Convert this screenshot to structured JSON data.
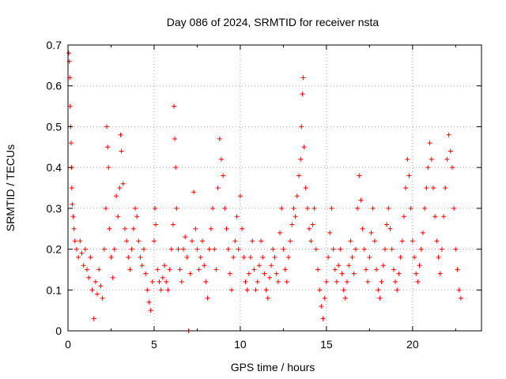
{
  "chart_data": {
    "type": "scatter",
    "title": "Day 086 of 2024, SRMTID for receiver nsta",
    "xlabel": "GPS time / hours",
    "ylabel": "SRMTID / TECUs",
    "xlim": [
      0,
      24
    ],
    "ylim": [
      0,
      0.7
    ],
    "xticks": [
      0,
      5,
      10,
      15,
      20
    ],
    "xtick_labels": [
      "0",
      "5",
      "10",
      "15",
      "20"
    ],
    "yticks": [
      0,
      0.1,
      0.2,
      0.3,
      0.4,
      0.5,
      0.6,
      0.7
    ],
    "ytick_labels": [
      "0",
      "0.1",
      "0.2",
      "0.3",
      "0.4",
      "0.5",
      "0.6",
      "0.7"
    ],
    "grid": true,
    "marker": "+",
    "color": "#ff0000",
    "x_extent_hours": [
      0,
      22.8
    ],
    "series": [
      {
        "name": "SRMTID",
        "points": [
          [
            0.05,
            0.68
          ],
          [
            0.08,
            0.66
          ],
          [
            0.1,
            0.62
          ],
          [
            0.12,
            0.55
          ],
          [
            0.15,
            0.5
          ],
          [
            0.18,
            0.46
          ],
          [
            0.2,
            0.4
          ],
          [
            0.22,
            0.35
          ],
          [
            0.25,
            0.31
          ],
          [
            0.3,
            0.28
          ],
          [
            0.35,
            0.25
          ],
          [
            0.4,
            0.22
          ],
          [
            0.5,
            0.2
          ],
          [
            0.6,
            0.18
          ],
          [
            0.7,
            0.22
          ],
          [
            0.8,
            0.19
          ],
          [
            0.9,
            0.16
          ],
          [
            1.0,
            0.2
          ],
          [
            1.1,
            0.15
          ],
          [
            1.2,
            0.13
          ],
          [
            1.3,
            0.18
          ],
          [
            1.4,
            0.1
          ],
          [
            1.5,
            0.03
          ],
          [
            1.6,
            0.12
          ],
          [
            1.7,
            0.09
          ],
          [
            1.8,
            0.15
          ],
          [
            1.9,
            0.11
          ],
          [
            2.0,
            0.08
          ],
          [
            2.1,
            0.2
          ],
          [
            2.2,
            0.3
          ],
          [
            2.25,
            0.5
          ],
          [
            2.3,
            0.45
          ],
          [
            2.35,
            0.4
          ],
          [
            2.4,
            0.25
          ],
          [
            2.5,
            0.18
          ],
          [
            2.6,
            0.13
          ],
          [
            2.7,
            0.2
          ],
          [
            2.8,
            0.33
          ],
          [
            2.9,
            0.28
          ],
          [
            3.0,
            0.35
          ],
          [
            3.05,
            0.48
          ],
          [
            3.1,
            0.44
          ],
          [
            3.2,
            0.36
          ],
          [
            3.3,
            0.25
          ],
          [
            3.4,
            0.22
          ],
          [
            3.5,
            0.18
          ],
          [
            3.6,
            0.15
          ],
          [
            3.7,
            0.2
          ],
          [
            3.8,
            0.25
          ],
          [
            3.9,
            0.3
          ],
          [
            4.0,
            0.28
          ],
          [
            4.1,
            0.22
          ],
          [
            4.2,
            0.18
          ],
          [
            4.3,
            0.16
          ],
          [
            4.4,
            0.2
          ],
          [
            4.5,
            0.14
          ],
          [
            4.6,
            0.1
          ],
          [
            4.7,
            0.07
          ],
          [
            4.8,
            0.05
          ],
          [
            4.9,
            0.12
          ],
          [
            5.0,
            0.22
          ],
          [
            5.05,
            0.3
          ],
          [
            5.1,
            0.26
          ],
          [
            5.2,
            0.15
          ],
          [
            5.3,
            0.12
          ],
          [
            5.4,
            0.1
          ],
          [
            5.5,
            0.13
          ],
          [
            5.6,
            0.16
          ],
          [
            5.7,
            0.12
          ],
          [
            5.8,
            0.1
          ],
          [
            5.9,
            0.15
          ],
          [
            6.0,
            0.2
          ],
          [
            6.1,
            0.26
          ],
          [
            6.15,
            0.55
          ],
          [
            6.2,
            0.47
          ],
          [
            6.25,
            0.4
          ],
          [
            6.3,
            0.3
          ],
          [
            6.4,
            0.2
          ],
          [
            6.5,
            0.15
          ],
          [
            6.6,
            0.12
          ],
          [
            6.7,
            0.2
          ],
          [
            6.8,
            0.23
          ],
          [
            6.9,
            0.18
          ],
          [
            7.0,
            0.0
          ],
          [
            7.1,
            0.14
          ],
          [
            7.2,
            0.22
          ],
          [
            7.3,
            0.34
          ],
          [
            7.4,
            0.25
          ],
          [
            7.5,
            0.2
          ],
          [
            7.6,
            0.15
          ],
          [
            7.7,
            0.18
          ],
          [
            7.8,
            0.22
          ],
          [
            7.9,
            0.16
          ],
          [
            8.0,
            0.12
          ],
          [
            8.1,
            0.08
          ],
          [
            8.2,
            0.2
          ],
          [
            8.3,
            0.25
          ],
          [
            8.4,
            0.3
          ],
          [
            8.5,
            0.2
          ],
          [
            8.6,
            0.15
          ],
          [
            8.7,
            0.35
          ],
          [
            8.8,
            0.47
          ],
          [
            8.9,
            0.42
          ],
          [
            9.0,
            0.38
          ],
          [
            9.1,
            0.3
          ],
          [
            9.2,
            0.25
          ],
          [
            9.3,
            0.2
          ],
          [
            9.4,
            0.14
          ],
          [
            9.5,
            0.1
          ],
          [
            9.6,
            0.18
          ],
          [
            9.7,
            0.22
          ],
          [
            9.8,
            0.28
          ],
          [
            9.9,
            0.2
          ],
          [
            10.0,
            0.33
          ],
          [
            10.1,
            0.25
          ],
          [
            10.2,
            0.18
          ],
          [
            10.3,
            0.12
          ],
          [
            10.4,
            0.1
          ],
          [
            10.5,
            0.14
          ],
          [
            10.6,
            0.18
          ],
          [
            10.7,
            0.22
          ],
          [
            10.8,
            0.15
          ],
          [
            10.9,
            0.1
          ],
          [
            11.0,
            0.12
          ],
          [
            11.1,
            0.16
          ],
          [
            11.2,
            0.22
          ],
          [
            11.3,
            0.18
          ],
          [
            11.4,
            0.14
          ],
          [
            11.5,
            0.1
          ],
          [
            11.6,
            0.08
          ],
          [
            11.7,
            0.13
          ],
          [
            11.8,
            0.16
          ],
          [
            11.9,
            0.2
          ],
          [
            12.0,
            0.18
          ],
          [
            12.1,
            0.14
          ],
          [
            12.2,
            0.12
          ],
          [
            12.3,
            0.24
          ],
          [
            12.4,
            0.3
          ],
          [
            12.5,
            0.2
          ],
          [
            12.6,
            0.15
          ],
          [
            12.7,
            0.12
          ],
          [
            12.8,
            0.18
          ],
          [
            12.9,
            0.22
          ],
          [
            13.0,
            0.26
          ],
          [
            13.1,
            0.3
          ],
          [
            13.2,
            0.28
          ],
          [
            13.3,
            0.33
          ],
          [
            13.4,
            0.38
          ],
          [
            13.5,
            0.42
          ],
          [
            13.55,
            0.5
          ],
          [
            13.6,
            0.58
          ],
          [
            13.65,
            0.62
          ],
          [
            13.7,
            0.45
          ],
          [
            13.8,
            0.35
          ],
          [
            13.9,
            0.3
          ],
          [
            14.0,
            0.25
          ],
          [
            14.1,
            0.22
          ],
          [
            14.2,
            0.26
          ],
          [
            14.3,
            0.3
          ],
          [
            14.4,
            0.2
          ],
          [
            14.5,
            0.15
          ],
          [
            14.6,
            0.1
          ],
          [
            14.7,
            0.06
          ],
          [
            14.8,
            0.03
          ],
          [
            14.9,
            0.08
          ],
          [
            15.0,
            0.12
          ],
          [
            15.1,
            0.18
          ],
          [
            15.2,
            0.24
          ],
          [
            15.3,
            0.3
          ],
          [
            15.4,
            0.2
          ],
          [
            15.5,
            0.15
          ],
          [
            15.6,
            0.12
          ],
          [
            15.7,
            0.16
          ],
          [
            15.8,
            0.2
          ],
          [
            15.9,
            0.14
          ],
          [
            16.0,
            0.1
          ],
          [
            16.1,
            0.08
          ],
          [
            16.2,
            0.12
          ],
          [
            16.3,
            0.16
          ],
          [
            16.4,
            0.22
          ],
          [
            16.5,
            0.18
          ],
          [
            16.6,
            0.14
          ],
          [
            16.7,
            0.2
          ],
          [
            16.8,
            0.3
          ],
          [
            16.9,
            0.38
          ],
          [
            17.0,
            0.32
          ],
          [
            17.1,
            0.25
          ],
          [
            17.2,
            0.2
          ],
          [
            17.3,
            0.15
          ],
          [
            17.4,
            0.12
          ],
          [
            17.5,
            0.18
          ],
          [
            17.6,
            0.24
          ],
          [
            17.7,
            0.3
          ],
          [
            17.8,
            0.22
          ],
          [
            17.9,
            0.15
          ],
          [
            18.0,
            0.1
          ],
          [
            18.1,
            0.08
          ],
          [
            18.2,
            0.12
          ],
          [
            18.3,
            0.16
          ],
          [
            18.4,
            0.2
          ],
          [
            18.5,
            0.26
          ],
          [
            18.6,
            0.3
          ],
          [
            18.7,
            0.25
          ],
          [
            18.8,
            0.2
          ],
          [
            18.9,
            0.15
          ],
          [
            19.0,
            0.12
          ],
          [
            19.1,
            0.1
          ],
          [
            19.2,
            0.14
          ],
          [
            19.3,
            0.18
          ],
          [
            19.4,
            0.22
          ],
          [
            19.5,
            0.28
          ],
          [
            19.6,
            0.35
          ],
          [
            19.7,
            0.42
          ],
          [
            19.8,
            0.38
          ],
          [
            19.9,
            0.3
          ],
          [
            20.0,
            0.22
          ],
          [
            20.1,
            0.18
          ],
          [
            20.2,
            0.14
          ],
          [
            20.3,
            0.12
          ],
          [
            20.4,
            0.16
          ],
          [
            20.5,
            0.2
          ],
          [
            20.6,
            0.24
          ],
          [
            20.7,
            0.3
          ],
          [
            20.8,
            0.35
          ],
          [
            20.9,
            0.4
          ],
          [
            21.0,
            0.46
          ],
          [
            21.1,
            0.42
          ],
          [
            21.2,
            0.35
          ],
          [
            21.3,
            0.28
          ],
          [
            21.4,
            0.22
          ],
          [
            21.5,
            0.18
          ],
          [
            21.6,
            0.14
          ],
          [
            21.7,
            0.2
          ],
          [
            21.8,
            0.28
          ],
          [
            21.9,
            0.35
          ],
          [
            22.0,
            0.42
          ],
          [
            22.1,
            0.48
          ],
          [
            22.2,
            0.44
          ],
          [
            22.3,
            0.4
          ],
          [
            22.4,
            0.3
          ],
          [
            22.5,
            0.2
          ],
          [
            22.6,
            0.15
          ],
          [
            22.7,
            0.1
          ],
          [
            22.8,
            0.08
          ]
        ]
      }
    ]
  }
}
